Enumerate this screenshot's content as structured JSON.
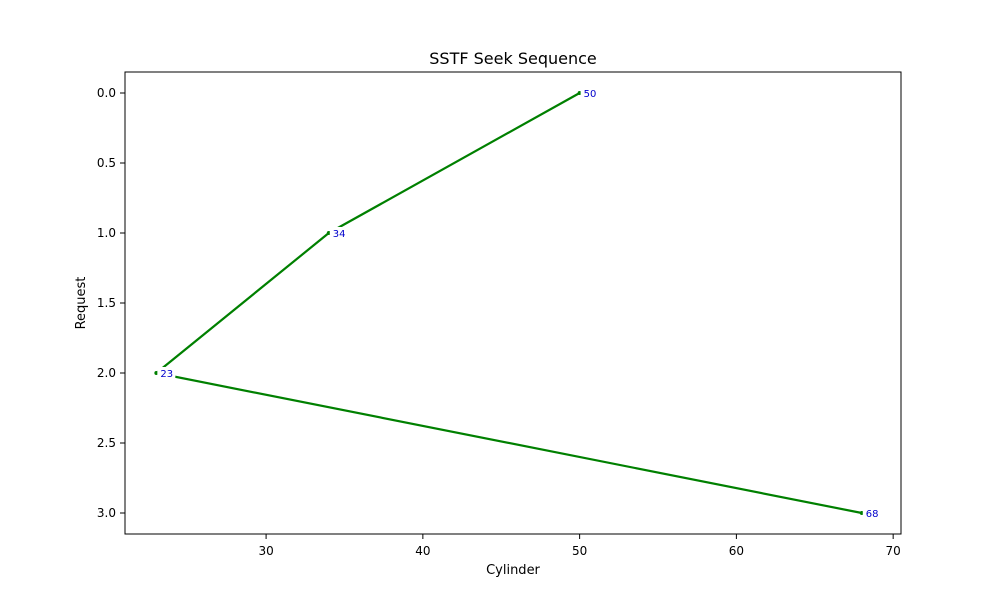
{
  "chart_data": {
    "type": "line",
    "title": "SSTF Seek Sequence",
    "xlabel": "Cylinder",
    "ylabel": "Request",
    "xlim": [
      21,
      70.5
    ],
    "ylim": [
      3.15,
      -0.15
    ],
    "y_inverted": true,
    "x_ticks": [
      30,
      40,
      50,
      60,
      70
    ],
    "x_tick_labels": [
      "30",
      "40",
      "50",
      "60",
      "70"
    ],
    "y_ticks": [
      0,
      0.5,
      1,
      1.5,
      2,
      2.5,
      3
    ],
    "y_tick_labels": [
      "0.0",
      "0.5",
      "1.0",
      "1.5",
      "2.0",
      "2.5",
      "3.0"
    ],
    "grid": false,
    "series": [
      {
        "x": [
          50,
          34,
          23,
          68
        ],
        "y": [
          0,
          1,
          2,
          3
        ],
        "labels": [
          "50",
          "34",
          "23",
          "68"
        ],
        "line_color": "#008000",
        "label_color": "#0000cc"
      }
    ]
  }
}
